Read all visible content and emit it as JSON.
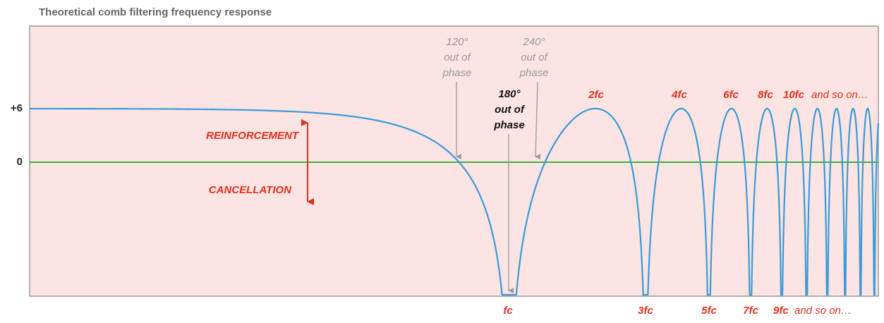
{
  "title": "Theoretical comb filtering frequency response",
  "y_labels": [
    "+6",
    "0"
  ],
  "region_labels": [
    "REINFORCEMENT",
    "CANCELLATION"
  ],
  "phase_notes": [
    {
      "angle": "120°",
      "line1": "out of",
      "line2": "phase"
    },
    {
      "angle": "180°",
      "line1": "out of",
      "line2": "phase"
    },
    {
      "angle": "240°",
      "line1": "out of",
      "line2": "phase"
    }
  ],
  "peak_labels": [
    "2fc",
    "4fc",
    "6fc",
    "8fc",
    "10fc"
  ],
  "peak_suffix": "and so on…",
  "null_labels": [
    "fc",
    "3fc",
    "5fc",
    "7fc",
    "9fc"
  ],
  "null_suffix": "and so on…"
}
